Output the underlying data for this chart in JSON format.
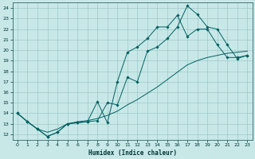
{
  "xlabel": "Humidex (Indice chaleur)",
  "xlim": [
    -0.5,
    23.5
  ],
  "ylim": [
    11.5,
    24.5
  ],
  "xticks": [
    0,
    1,
    2,
    3,
    4,
    5,
    6,
    7,
    8,
    9,
    10,
    11,
    12,
    13,
    14,
    15,
    16,
    17,
    18,
    19,
    20,
    21,
    22,
    23
  ],
  "yticks": [
    12,
    13,
    14,
    15,
    16,
    17,
    18,
    19,
    20,
    21,
    22,
    23,
    24
  ],
  "background_color": "#c8e8e8",
  "grid_color": "#a0c8c8",
  "line_color": "#006060",
  "line1_x": [
    0,
    1,
    2,
    3,
    4,
    5,
    6,
    7,
    8,
    9,
    10,
    11,
    12,
    13,
    14,
    15,
    16,
    17,
    18,
    19,
    20,
    21,
    22,
    23
  ],
  "line1_y": [
    14.0,
    13.2,
    12.5,
    11.8,
    12.2,
    13.0,
    13.1,
    13.2,
    15.1,
    13.1,
    17.0,
    19.8,
    20.3,
    21.1,
    22.2,
    22.2,
    23.3,
    21.3,
    22.0,
    22.0,
    20.5,
    19.3,
    19.3,
    19.5
  ],
  "line2_x": [
    0,
    1,
    2,
    3,
    4,
    5,
    6,
    7,
    8,
    9,
    10,
    11,
    12,
    13,
    14,
    15,
    16,
    17,
    18,
    19,
    20,
    21,
    22,
    23
  ],
  "line2_y": [
    14.0,
    13.2,
    12.5,
    11.8,
    12.2,
    13.0,
    13.1,
    13.2,
    13.3,
    15.0,
    14.8,
    17.4,
    17.0,
    19.9,
    20.3,
    21.1,
    22.2,
    24.2,
    23.4,
    22.2,
    22.0,
    20.5,
    19.2,
    19.5
  ],
  "line3_x": [
    0,
    1,
    2,
    3,
    4,
    5,
    6,
    7,
    8,
    9,
    10,
    11,
    12,
    13,
    14,
    15,
    16,
    17,
    18,
    19,
    20,
    21,
    22,
    23
  ],
  "line3_y": [
    14.0,
    13.2,
    12.5,
    12.2,
    12.5,
    13.0,
    13.2,
    13.3,
    13.5,
    13.8,
    14.2,
    14.8,
    15.3,
    15.9,
    16.5,
    17.2,
    17.9,
    18.6,
    19.0,
    19.3,
    19.5,
    19.7,
    19.8,
    19.9
  ]
}
